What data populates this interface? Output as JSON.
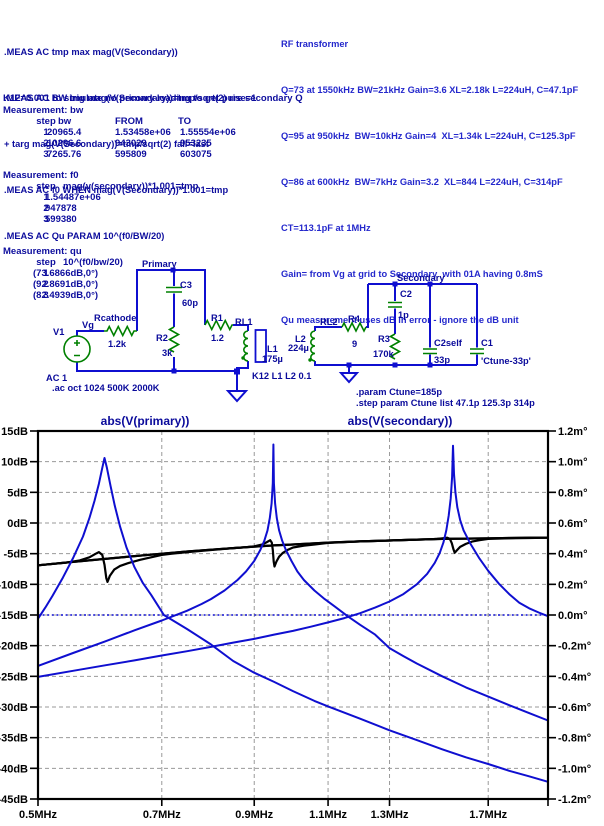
{
  "colors": {
    "wire_blue": "#0f0fd0",
    "component_green": "#008000",
    "text_navy": "#0a0a9b",
    "comment_blue": "#2428cc",
    "curve_blue": "#0f0fd0",
    "curve_black": "#000000",
    "grid_gray": "#9a9a9a"
  },
  "directives": {
    "lines": [
      ".MEAS AC tmp max mag(V(Secondary))",
      ".MEAS AC BW trig mag(V(Secondary))=tmp/sqrt(2) rise=1",
      "+ targ mag(V(Secondary))=tmp/sqrt(2) fall=last",
      ".MEAS AC f0 WHEN mag(V(Secondary))*1.001=tmp",
      ".MEAS AC Qu PARAM 10^(f0/BW/20)"
    ]
  },
  "comment_block": {
    "lines": [
      "RF transformer",
      "Q=73 at 1550kHz BW=21kHz Gain=3.6 XL=2.18k L=224uH, C=47.1pF",
      "Q=95 at 950kHz  BW=10kHz Gain=4  XL=1.34k L=224uH, C=125.3pF",
      "Q=86 at 600kHz  BW=7kHz Gain=3.2  XL=844 L=224uH, C=314pF",
      "CT=113.1pF at 1MHz",
      "Gain= from Vg at grid to Secondary  with 01A having 0.8mS",
      "Qu measurement uses dB in error - ignore the dB unit"
    ]
  },
  "k12_comment": "K12=0.001 to simulate no primary loading to get pure secondary Q",
  "measurements": {
    "bw": {
      "title": "Measurement: bw",
      "headers": [
        "step",
        "bw",
        "FROM",
        "TO"
      ],
      "rows": [
        [
          "1",
          "20965.4",
          "1.53458e+06",
          "1.55554e+06"
        ],
        [
          "2",
          "10206.6",
          "943029",
          "953235"
        ],
        [
          "3",
          "7265.76",
          "595809",
          "603075"
        ]
      ]
    },
    "f0": {
      "title": "Measurement: f0",
      "headers": [
        "step",
        "mag(v(secondary))*1.001=tmp"
      ],
      "rows": [
        [
          "1",
          "1.54487e+06"
        ],
        [
          "2",
          "947878"
        ],
        [
          "3",
          "599380"
        ]
      ]
    },
    "qu": {
      "title": "Measurement: qu",
      "headers": [
        "step",
        "10^(f0/bw/20)"
      ],
      "rows": [
        [
          "1",
          "(73.6866dB,0°)"
        ],
        [
          "2",
          "(92.8691dB,0°)"
        ],
        [
          "3",
          "(82.4939dB,0°)"
        ]
      ]
    }
  },
  "schematic": {
    "v1": "V1",
    "v1_value": "AC 1",
    "ac_directive": ".ac oct 1024 500K 2000K",
    "vg": "Vg",
    "rcathode": "Rcathode",
    "rcathode_value": "1.2k",
    "r2": "R2",
    "r2_value": "3k",
    "c3": "C3",
    "c3_value": "60p",
    "primary": "Primary",
    "r1": "R1",
    "r1_value": "1.2",
    "rl1": "RL1",
    "l1": "L1",
    "l1_value": "175µ",
    "k12": "K12 L1 L2 0.1",
    "l2": "L2",
    "l2_value": "224µ",
    "rl2": "RL2",
    "r4": "R4",
    "r4_value": "9",
    "r3": "R3",
    "r3_value": "170k",
    "c2": "C2",
    "c2_value": "1p",
    "secondary": "Secondary",
    "c2self": "C2self",
    "c2self_value": "33p",
    "c1": "C1",
    "c1_value": "'Ctune-33p'",
    "param_directive": ".param Ctune=185p",
    "step_directive": ".step param Ctune list 47.1p 125.3p 314p"
  },
  "chart_data": {
    "type": "line",
    "titles": [
      {
        "text": "abs(V(primary))",
        "color": "#000000",
        "x_center": 145
      },
      {
        "text": "abs(V(secondary))",
        "color": "#0f0fd0",
        "x_center": 400
      }
    ],
    "x_axis": {
      "scale": "log",
      "min_mhz": 0.5,
      "max_mhz": 2.0,
      "ticks": [
        {
          "mhz": 0.5,
          "label": "0.5MHz"
        },
        {
          "mhz": 0.7,
          "label": "0.7MHz"
        },
        {
          "mhz": 0.9,
          "label": "0.9MHz"
        },
        {
          "mhz": 1.1,
          "label": "1.1MHz"
        },
        {
          "mhz": 1.3,
          "label": "1.3MHz"
        },
        {
          "mhz": 1.7,
          "label": "1.7MHz"
        },
        {
          "mhz": 2.0,
          "label": ""
        }
      ],
      "grid_mhz": [
        0.7,
        0.9,
        1.1,
        1.3,
        1.7
      ]
    },
    "y_left": {
      "min": -45,
      "max": 15,
      "step": 5,
      "unit": "dB"
    },
    "y_right": {
      "min": -1.2,
      "max": 1.2,
      "step": 0.2,
      "unit": "m°"
    },
    "y_left_labels": [
      "15dB",
      "10dB",
      "5dB",
      "0dB",
      "-5dB",
      "-10dB",
      "-15dB",
      "-20dB",
      "-25dB",
      "-30dB",
      "-35dB",
      "-40dB",
      "-45dB"
    ],
    "y_right_labels": [
      "1.2m°",
      "1.0m°",
      "0.8m°",
      "0.6m°",
      "0.4m°",
      "0.2m°",
      "0.0m°",
      "-0.2m°",
      "-0.4m°",
      "-0.6m°",
      "-0.8m°",
      "-1.0m°",
      "-1.2m°"
    ],
    "series": [
      {
        "name": "abs(V(primary)) Ctune=314p",
        "color": "#000000",
        "width": 2.2,
        "axis": "left",
        "points": [
          [
            0.5,
            -6.9
          ],
          [
            0.54,
            -6.45
          ],
          [
            0.56,
            -6.1
          ],
          [
            0.575,
            -5.6
          ],
          [
            0.585,
            -5.0
          ],
          [
            0.59,
            -4.75
          ],
          [
            0.5955,
            -5.2
          ],
          [
            0.599,
            -6.8
          ],
          [
            0.602,
            -9.0
          ],
          [
            0.604,
            -9.6
          ],
          [
            0.608,
            -8.6
          ],
          [
            0.615,
            -7.6
          ],
          [
            0.625,
            -7.0
          ],
          [
            0.64,
            -6.5
          ],
          [
            0.66,
            -6.0
          ],
          [
            0.68,
            -5.6
          ],
          [
            0.7,
            -5.2
          ],
          [
            0.72,
            -5.0
          ],
          [
            0.75,
            -4.75
          ],
          [
            0.8,
            -4.4
          ],
          [
            0.85,
            -4.1
          ],
          [
            0.9,
            -3.85
          ],
          [
            0.95,
            -3.65
          ],
          [
            1.0,
            -3.5
          ],
          [
            1.1,
            -3.2
          ],
          [
            1.2,
            -3.0
          ],
          [
            1.3,
            -2.85
          ],
          [
            1.4,
            -2.7
          ],
          [
            1.5,
            -2.6
          ],
          [
            1.6,
            -2.55
          ],
          [
            1.7,
            -2.5
          ],
          [
            1.8,
            -2.45
          ],
          [
            1.9,
            -2.4
          ],
          [
            2.0,
            -2.4
          ]
        ]
      },
      {
        "name": "abs(V(primary)) Ctune=125.3p",
        "color": "#000000",
        "width": 2.2,
        "axis": "left",
        "points": [
          [
            0.5,
            -6.9
          ],
          [
            0.55,
            -6.35
          ],
          [
            0.6,
            -5.85
          ],
          [
            0.65,
            -5.4
          ],
          [
            0.7,
            -5.0
          ],
          [
            0.75,
            -4.65
          ],
          [
            0.8,
            -4.35
          ],
          [
            0.85,
            -4.1
          ],
          [
            0.88,
            -3.95
          ],
          [
            0.9,
            -3.8
          ],
          [
            0.92,
            -3.5
          ],
          [
            0.932,
            -3.1
          ],
          [
            0.94,
            -2.8
          ],
          [
            0.944,
            -3.2
          ],
          [
            0.9465,
            -4.4
          ],
          [
            0.949,
            -6.3
          ],
          [
            0.951,
            -7.1
          ],
          [
            0.956,
            -6.3
          ],
          [
            0.963,
            -5.5
          ],
          [
            0.972,
            -4.9
          ],
          [
            0.985,
            -4.4
          ],
          [
            1.0,
            -4.0
          ],
          [
            1.03,
            -3.7
          ],
          [
            1.06,
            -3.5
          ],
          [
            1.1,
            -3.25
          ],
          [
            1.2,
            -3.0
          ],
          [
            1.3,
            -2.85
          ],
          [
            1.4,
            -2.7
          ],
          [
            1.5,
            -2.6
          ],
          [
            1.6,
            -2.55
          ],
          [
            1.7,
            -2.5
          ],
          [
            1.8,
            -2.45
          ],
          [
            1.9,
            -2.4
          ],
          [
            2.0,
            -2.4
          ]
        ]
      },
      {
        "name": "abs(V(primary)) Ctune=47.1p",
        "color": "#000000",
        "width": 2.2,
        "axis": "left",
        "points": [
          [
            0.5,
            -6.9
          ],
          [
            0.55,
            -6.35
          ],
          [
            0.6,
            -5.85
          ],
          [
            0.65,
            -5.4
          ],
          [
            0.7,
            -5.0
          ],
          [
            0.75,
            -4.65
          ],
          [
            0.8,
            -4.35
          ],
          [
            0.85,
            -4.1
          ],
          [
            0.9,
            -3.85
          ],
          [
            0.95,
            -3.65
          ],
          [
            1.0,
            -3.5
          ],
          [
            1.1,
            -3.2
          ],
          [
            1.2,
            -3.0
          ],
          [
            1.3,
            -2.85
          ],
          [
            1.4,
            -2.7
          ],
          [
            1.45,
            -2.65
          ],
          [
            1.48,
            -2.6
          ],
          [
            1.5,
            -2.5
          ],
          [
            1.52,
            -2.4
          ],
          [
            1.532,
            -2.6
          ],
          [
            1.54,
            -3.3
          ],
          [
            1.547,
            -4.3
          ],
          [
            1.552,
            -4.85
          ],
          [
            1.56,
            -4.5
          ],
          [
            1.575,
            -3.9
          ],
          [
            1.6,
            -3.4
          ],
          [
            1.63,
            -3.0
          ],
          [
            1.66,
            -2.8
          ],
          [
            1.7,
            -2.6
          ],
          [
            1.8,
            -2.5
          ],
          [
            1.9,
            -2.45
          ],
          [
            2.0,
            -2.4
          ]
        ]
      },
      {
        "name": "abs(V(secondary)) Ctune=314p f0=599kHz",
        "color": "#0f0fd0",
        "width": 2,
        "axis": "left",
        "points": [
          [
            0.5,
            -15.6
          ],
          [
            0.51,
            -13.8
          ],
          [
            0.52,
            -11.9
          ],
          [
            0.535,
            -8.9
          ],
          [
            0.55,
            -5.7
          ],
          [
            0.565,
            -2.2
          ],
          [
            0.575,
            0.8
          ],
          [
            0.583,
            3.6
          ],
          [
            0.59,
            6.4
          ],
          [
            0.5955,
            9.0
          ],
          [
            0.599,
            10.6
          ],
          [
            0.603,
            9.0
          ],
          [
            0.609,
            6.0
          ],
          [
            0.616,
            2.8
          ],
          [
            0.625,
            -0.6
          ],
          [
            0.636,
            -4.0
          ],
          [
            0.65,
            -7.2
          ],
          [
            0.665,
            -9.8
          ],
          [
            0.68,
            -11.7
          ],
          [
            0.704,
            -15.0
          ],
          [
            0.75,
            -17.3
          ],
          [
            0.8,
            -19.8
          ],
          [
            0.85,
            -22.5
          ],
          [
            0.9,
            -24.4
          ],
          [
            0.95,
            -25.9
          ],
          [
            1.0,
            -27.4
          ],
          [
            1.06,
            -29.0
          ],
          [
            1.1,
            -29.9
          ],
          [
            1.2,
            -31.9
          ],
          [
            1.3,
            -33.8
          ],
          [
            1.4,
            -35.4
          ],
          [
            1.5,
            -36.9
          ],
          [
            1.6,
            -38.2
          ],
          [
            1.7,
            -39.3
          ],
          [
            1.8,
            -40.4
          ],
          [
            1.9,
            -41.3
          ],
          [
            2.0,
            -42.2
          ]
        ]
      },
      {
        "name": "abs(V(secondary)) Ctune=125.3p f0=948kHz",
        "color": "#0f0fd0",
        "width": 2,
        "axis": "left",
        "points": [
          [
            0.5,
            -23.3
          ],
          [
            0.55,
            -21.2
          ],
          [
            0.6,
            -19.3
          ],
          [
            0.65,
            -17.5
          ],
          [
            0.7,
            -15.9
          ],
          [
            0.75,
            -14.3
          ],
          [
            0.78,
            -13.2
          ],
          [
            0.8,
            -12.4
          ],
          [
            0.83,
            -11.0
          ],
          [
            0.86,
            -9.3
          ],
          [
            0.88,
            -7.9
          ],
          [
            0.9,
            -6.2
          ],
          [
            0.915,
            -4.4
          ],
          [
            0.925,
            -2.9
          ],
          [
            0.933,
            -1.2
          ],
          [
            0.939,
            0.8
          ],
          [
            0.9435,
            3.2
          ],
          [
            0.9465,
            6.5
          ],
          [
            0.948,
            12.8
          ],
          [
            0.9495,
            6.5
          ],
          [
            0.9525,
            3.2
          ],
          [
            0.957,
            0.8
          ],
          [
            0.963,
            -1.2
          ],
          [
            0.971,
            -2.9
          ],
          [
            0.981,
            -4.4
          ],
          [
            0.996,
            -6.2
          ],
          [
            1.012,
            -7.9
          ],
          [
            1.03,
            -9.3
          ],
          [
            1.06,
            -11.0
          ],
          [
            1.09,
            -12.4
          ],
          [
            1.12,
            -13.6
          ],
          [
            1.16,
            -15.2
          ],
          [
            1.2,
            -16.6
          ],
          [
            1.25,
            -18.2
          ],
          [
            1.3,
            -20.4
          ],
          [
            1.35,
            -21.7
          ],
          [
            1.4,
            -22.9
          ],
          [
            1.5,
            -25.0
          ],
          [
            1.6,
            -26.8
          ],
          [
            1.7,
            -28.3
          ],
          [
            1.8,
            -29.7
          ],
          [
            1.9,
            -31.0
          ],
          [
            2.0,
            -32.2
          ]
        ]
      },
      {
        "name": "abs(V(secondary)) Ctune=47.1p f0=1545kHz",
        "color": "#0f0fd0",
        "width": 2,
        "axis": "left",
        "points": [
          [
            0.5,
            -25.1
          ],
          [
            0.55,
            -24.1
          ],
          [
            0.6,
            -23.2
          ],
          [
            0.65,
            -22.4
          ],
          [
            0.7,
            -21.6
          ],
          [
            0.75,
            -20.9
          ],
          [
            0.8,
            -20.2
          ],
          [
            0.85,
            -19.5
          ],
          [
            0.9,
            -18.9
          ],
          [
            0.95,
            -18.2
          ],
          [
            1.0,
            -17.6
          ],
          [
            1.05,
            -16.9
          ],
          [
            1.1,
            -16.2
          ],
          [
            1.15,
            -15.5
          ],
          [
            1.2,
            -14.7
          ],
          [
            1.25,
            -13.8
          ],
          [
            1.3,
            -12.8
          ],
          [
            1.35,
            -11.6
          ],
          [
            1.4,
            -10.0
          ],
          [
            1.44,
            -8.3
          ],
          [
            1.47,
            -6.5
          ],
          [
            1.49,
            -4.9
          ],
          [
            1.505,
            -3.2
          ],
          [
            1.517,
            -1.2
          ],
          [
            1.527,
            1.2
          ],
          [
            1.535,
            4.0
          ],
          [
            1.541,
            7.5
          ],
          [
            1.545,
            12.6
          ],
          [
            1.549,
            8.0
          ],
          [
            1.555,
            5.0
          ],
          [
            1.563,
            2.6
          ],
          [
            1.575,
            0.5
          ],
          [
            1.59,
            -1.2
          ],
          [
            1.62,
            -3.4
          ],
          [
            1.66,
            -5.8
          ],
          [
            1.7,
            -7.8
          ],
          [
            1.75,
            -9.9
          ],
          [
            1.8,
            -11.6
          ],
          [
            1.85,
            -13.0
          ],
          [
            1.9,
            -13.9
          ],
          [
            1.95,
            -14.6
          ],
          [
            2.0,
            -15.2
          ]
        ]
      },
      {
        "name": "phase reference 0.0m°",
        "color": "#0f0fd0",
        "width": 1.6,
        "axis": "right",
        "dotted": true,
        "points": [
          [
            0.5,
            0
          ],
          [
            2.0,
            0
          ]
        ]
      }
    ]
  }
}
